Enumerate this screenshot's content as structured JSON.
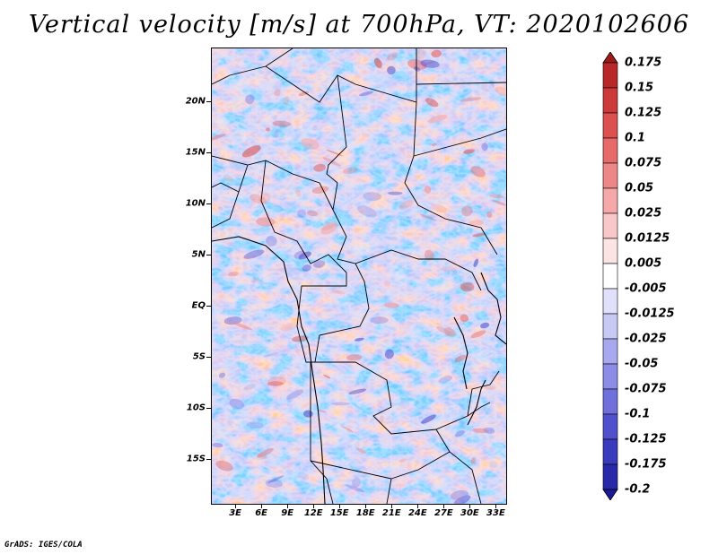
{
  "title": "Vertical velocity [m/s] at 700hPa, VT: 2020102606",
  "credit": "GrADS: IGES/COLA",
  "map": {
    "lat_labels": [
      "20N",
      "15N",
      "10N",
      "5N",
      "EQ",
      "5S",
      "10S",
      "15S"
    ],
    "lon_labels": [
      "3E",
      "6E",
      "9E",
      "12E",
      "15E",
      "18E",
      "21E",
      "24E",
      "27E",
      "30E",
      "33E"
    ],
    "lat_values": [
      20,
      15,
      10,
      5,
      0,
      -5,
      -10,
      -15
    ],
    "lon_values": [
      3,
      6,
      9,
      12,
      15,
      18,
      21,
      24,
      27,
      30,
      33
    ],
    "extent": {
      "lon_min": 0.2,
      "lon_max": 34.3,
      "lat_min": -19.5,
      "lat_max": 25.3
    },
    "field": "vertical velocity",
    "level": "700hPa",
    "valid_time": "2020102606"
  },
  "colorbar": {
    "labels": [
      "0.175",
      "0.15",
      "0.125",
      "0.1",
      "0.075",
      "0.05",
      "0.025",
      "0.0125",
      "0.005",
      "-0.005",
      "-0.0125",
      "-0.025",
      "-0.05",
      "-0.075",
      "-0.1",
      "-0.125",
      "-0.175",
      "-0.2"
    ],
    "colors": [
      "#a01818",
      "#b82828",
      "#cc3a3a",
      "#dc5050",
      "#e66a6a",
      "#ee8888",
      "#f4a8a8",
      "#f8c8c8",
      "#fce4e4",
      "#ffffff",
      "#e0e0fa",
      "#c8c8f4",
      "#a8a8ee",
      "#8c8ce6",
      "#7070dc",
      "#5050cc",
      "#3a3abc",
      "#2828a8",
      "#1a1a96"
    ]
  }
}
